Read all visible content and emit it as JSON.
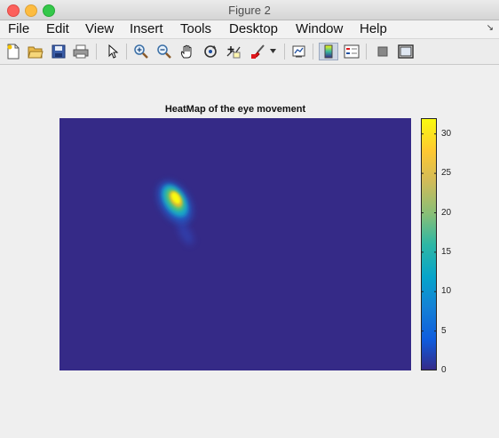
{
  "window": {
    "title": "Figure 2"
  },
  "menubar": {
    "items": [
      "File",
      "Edit",
      "View",
      "Insert",
      "Tools",
      "Desktop",
      "Window",
      "Help"
    ],
    "dock_arrow": "↘"
  },
  "toolbar": {
    "buttons": [
      {
        "name": "new-figure-icon",
        "glyph": "🗋"
      },
      {
        "name": "open-file-icon",
        "glyph": "📂"
      },
      {
        "name": "save-icon",
        "glyph": "💾"
      },
      {
        "name": "print-icon",
        "glyph": "🖨"
      },
      {
        "name": "edit-plot-arrow-icon",
        "glyph": "↖"
      },
      {
        "name": "zoom-in-icon",
        "glyph": "+"
      },
      {
        "name": "zoom-out-icon",
        "glyph": "−"
      },
      {
        "name": "pan-hand-icon",
        "glyph": "✋"
      },
      {
        "name": "rotate-3d-icon",
        "glyph": "↻"
      },
      {
        "name": "data-cursor-icon",
        "glyph": "+"
      },
      {
        "name": "brush-icon",
        "glyph": "🖌"
      },
      {
        "name": "brush-menu-arrow-icon",
        "glyph": "▾"
      },
      {
        "name": "link-plot-icon",
        "glyph": "▤"
      },
      {
        "name": "insert-colorbar-icon",
        "glyph": "▯"
      },
      {
        "name": "insert-legend-icon",
        "glyph": "☰"
      },
      {
        "name": "hide-plot-tools-icon",
        "glyph": "■"
      },
      {
        "name": "show-plot-tools-icon",
        "glyph": "▣"
      }
    ]
  },
  "colors": {
    "background_low": "#352a87",
    "peak": "#f9fb0e"
  },
  "chart_data": {
    "type": "heatmap",
    "title": "HeatMap of the eye movement",
    "xlabel": "",
    "ylabel": "",
    "colormap": "parula",
    "color_range": [
      0,
      32
    ],
    "colorbar_ticks": [
      "0",
      "5",
      "10",
      "15",
      "20",
      "25",
      "30"
    ],
    "hotspot_peak_value": 32
  }
}
